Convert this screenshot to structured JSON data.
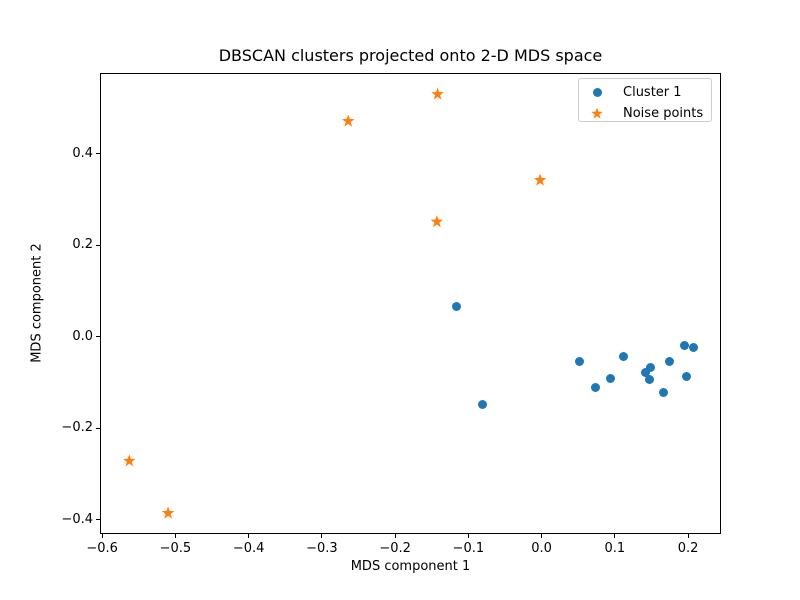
{
  "figure": {
    "background": "#ffffff",
    "text_color": "#000000"
  },
  "chart_data": {
    "type": "scatter",
    "title": "DBSCAN clusters projected onto 2-D MDS space",
    "xlabel": "MDS component 1",
    "ylabel": "MDS component 2",
    "xlim": [
      -0.603,
      0.245
    ],
    "ylim": [
      -0.431,
      0.577
    ],
    "xticks": [
      -0.6,
      -0.5,
      -0.4,
      -0.3,
      -0.2,
      -0.1,
      0.0,
      0.1,
      0.2
    ],
    "yticks": [
      -0.4,
      -0.2,
      0.0,
      0.2,
      0.4
    ],
    "grid": false,
    "legend_position": "upper right",
    "series": [
      {
        "name": "Cluster 1",
        "marker": "circle",
        "color": "#1f77b4",
        "points": [
          [
            -0.116,
            0.066
          ],
          [
            -0.081,
            -0.147
          ],
          [
            0.052,
            -0.053
          ],
          [
            0.074,
            -0.111
          ],
          [
            0.094,
            -0.091
          ],
          [
            0.112,
            -0.043
          ],
          [
            0.142,
            -0.078
          ],
          [
            0.149,
            -0.067
          ],
          [
            0.148,
            -0.094
          ],
          [
            0.166,
            -0.122
          ],
          [
            0.174,
            -0.053
          ],
          [
            0.195,
            -0.018
          ],
          [
            0.207,
            -0.023
          ],
          [
            0.198,
            -0.087
          ]
        ]
      },
      {
        "name": "Noise points",
        "marker": "star",
        "color": "#ff7f0e",
        "points": [
          [
            -0.142,
            0.531
          ],
          [
            -0.264,
            0.472
          ],
          [
            -0.002,
            0.343
          ],
          [
            -0.143,
            0.252
          ],
          [
            -0.563,
            -0.271
          ],
          [
            -0.51,
            -0.385
          ]
        ]
      }
    ]
  },
  "legend": {
    "items": [
      {
        "label": "Cluster 1",
        "marker": "circle",
        "color": "#1f77b4"
      },
      {
        "label": "Noise points",
        "marker": "star",
        "color": "#ff7f0e"
      }
    ]
  }
}
